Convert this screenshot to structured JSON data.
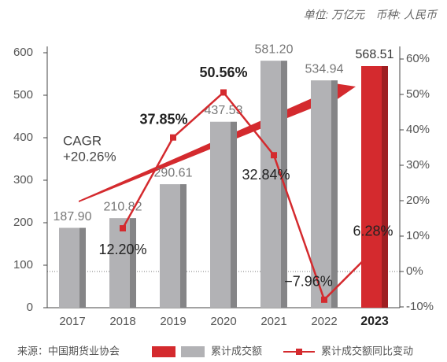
{
  "chart_data": {
    "type": "bar_line",
    "unit_note": "单位: 万亿元　币种: 人民币",
    "annotation": [
      "CAGR",
      "+20.26%"
    ],
    "source": "来源：中国期货业协会",
    "categories": [
      "2017",
      "2018",
      "2019",
      "2020",
      "2021",
      "2022",
      "2023"
    ],
    "series": [
      {
        "name": "累计成交额",
        "color": "#b2b2b5",
        "colors": [
          "#b2b2b5",
          "#b2b2b5",
          "#b2b2b5",
          "#b2b2b5",
          "#b2b2b5",
          "#b2b2b5",
          "#d42a2e"
        ],
        "values": [
          187.9,
          210.82,
          290.61,
          437.53,
          581.2,
          534.94,
          568.51
        ],
        "value_labels": [
          "187.90",
          "210.82",
          "290.61",
          "437.53",
          "581.20",
          "534.94",
          "568.51"
        ]
      },
      {
        "name": "累计成交额同比变动",
        "color": "#d42a2e",
        "axis": "y2",
        "values": [
          null,
          12.2,
          37.85,
          50.56,
          32.84,
          -7.96,
          6.28
        ],
        "value_labels": [
          null,
          "12.20%",
          "37.85%",
          "50.56%",
          "32.84%",
          "−7.96%",
          "6.28%"
        ]
      }
    ],
    "ylim": [
      0,
      600
    ],
    "yticks": [
      0,
      100,
      200,
      300,
      400,
      500,
      600
    ],
    "y2lim": [
      -10,
      60
    ],
    "y2ticks": [
      {
        "value": -10,
        "label": "-10%"
      },
      {
        "value": 0,
        "label": "0%"
      },
      {
        "value": 10,
        "label": "10%"
      },
      {
        "value": 20,
        "label": "20%"
      },
      {
        "value": 30,
        "label": "30%"
      },
      {
        "value": 40,
        "label": "40%"
      },
      {
        "value": 50,
        "label": "50%"
      },
      {
        "value": 60,
        "label": "60%"
      }
    ]
  }
}
